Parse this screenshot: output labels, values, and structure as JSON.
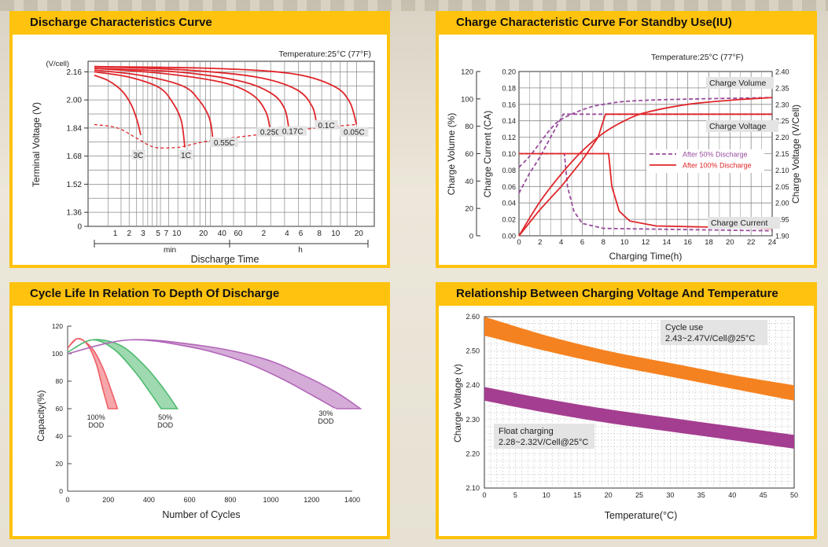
{
  "panels": {
    "p1": {
      "title": "Discharge Characteristics Curve"
    },
    "p2": {
      "title": "Charge Characteristic Curve For Standby Use(IU)"
    },
    "p3": {
      "title": "Cycle Life In Relation To Depth Of Discharge"
    },
    "p4": {
      "title": "Relationship Between Charging Voltage And Temperature"
    }
  },
  "chart_data": [
    {
      "type": "line",
      "title": "Discharge Characteristics Curve",
      "note": "Temperature:25°C (77°F)",
      "ylabel": "Terminal Voltage (V)",
      "yunit": "(V/cell)",
      "xlabel": "Discharge Time",
      "yticks": [
        "0",
        "1.36",
        "1.52",
        "1.68",
        "1.84",
        "2.00",
        "2.16"
      ],
      "xticks_min": [
        "1",
        "2",
        "3",
        "5",
        "7",
        "10",
        "20",
        "40",
        "60"
      ],
      "xticks_h": [
        "2",
        "4",
        "6",
        "8",
        "10",
        "20"
      ],
      "xgroup_labels": [
        "min",
        "h"
      ],
      "series": [
        {
          "name": "3C",
          "points": [
            [
              0.0,
              2.14
            ],
            [
              0.6,
              2.11
            ],
            [
              1.2,
              2.05
            ],
            [
              1.6,
              1.97
            ],
            [
              1.85,
              1.88
            ],
            [
              2.0,
              1.8
            ]
          ]
        },
        {
          "name": "1C",
          "points": [
            [
              0.0,
              2.16
            ],
            [
              1.5,
              2.13
            ],
            [
              2.8,
              2.07
            ],
            [
              3.4,
              1.98
            ],
            [
              3.75,
              1.88
            ],
            [
              3.9,
              1.73
            ]
          ]
        },
        {
          "name": "0.55C",
          "points": [
            [
              0.0,
              2.17
            ],
            [
              2.0,
              2.14
            ],
            [
              3.8,
              2.08
            ],
            [
              4.5,
              2.0
            ],
            [
              4.95,
              1.9
            ],
            [
              5.1,
              1.79
            ]
          ]
        },
        {
          "name": "0.25C",
          "points": [
            [
              0.0,
              2.18
            ],
            [
              3.0,
              2.15
            ],
            [
              5.5,
              2.1
            ],
            [
              6.8,
              2.03
            ],
            [
              7.4,
              1.93
            ],
            [
              7.6,
              1.81
            ]
          ]
        },
        {
          "name": "0.17C",
          "points": [
            [
              0.0,
              2.18
            ],
            [
              3.5,
              2.16
            ],
            [
              6.2,
              2.11
            ],
            [
              7.6,
              2.04
            ],
            [
              8.2,
              1.95
            ],
            [
              8.4,
              1.82
            ]
          ]
        },
        {
          "name": "0.1C",
          "points": [
            [
              0.0,
              2.19
            ],
            [
              4.0,
              2.17
            ],
            [
              7.0,
              2.13
            ],
            [
              8.7,
              2.06
            ],
            [
              9.4,
              1.96
            ],
            [
              9.6,
              1.84
            ]
          ]
        },
        {
          "name": "0.05C",
          "points": [
            [
              0.0,
              2.19
            ],
            [
              5.0,
              2.18
            ],
            [
              8.5,
              2.15
            ],
            [
              10.3,
              2.08
            ],
            [
              11.0,
              1.99
            ],
            [
              11.3,
              1.86
            ]
          ]
        }
      ],
      "dashed_cutoff": [
        [
          0.0,
          1.86
        ],
        [
          1.0,
          1.84
        ],
        [
          1.85,
          1.78
        ],
        [
          2.6,
          1.73
        ],
        [
          3.6,
          1.73
        ],
        [
          4.0,
          1.74
        ],
        [
          5.1,
          1.77
        ],
        [
          7.6,
          1.81
        ],
        [
          9.6,
          1.84
        ],
        [
          11.3,
          1.86
        ]
      ]
    },
    {
      "type": "line",
      "title": "Charge Characteristic Curve For Standby Use(IU)",
      "note": "Temperature:25°C (77°F)",
      "xlabel": "Charging Time(h)",
      "ylabel_left1": "Charge Volume (%)",
      "ylabel_left2": "Charge Current (CA)",
      "ylabel_right": "Charge Voltage (V/Cell)",
      "x": [
        0,
        24
      ],
      "xticks": [
        "0",
        "2",
        "4",
        "6",
        "8",
        "10",
        "12",
        "14",
        "16",
        "18",
        "20",
        "22",
        "24"
      ],
      "yticks_volume": [
        "0",
        "20",
        "40",
        "60",
        "80",
        "100",
        "120"
      ],
      "yticks_current": [
        "0.00",
        "0.02",
        "0.04",
        "0.06",
        "0.08",
        "0.10",
        "0.12",
        "0.14",
        "0.16",
        "0.18",
        "0.20"
      ],
      "yticks_voltage": [
        "1.90",
        "1.95",
        "2.00",
        "2.05",
        "2.10",
        "2.15",
        "2.20",
        "2.25",
        "2.30",
        "2.35",
        "2.40"
      ],
      "legend": [
        "After 50% Discharge",
        "After 100% Discharge"
      ],
      "annotations": [
        "Charge Volume",
        "Charge Voltage",
        "Charge Current"
      ],
      "series": [
        {
          "name": "After 50% Discharge",
          "kind": "volume",
          "points": [
            [
              0,
              50
            ],
            [
              1,
              58
            ],
            [
              2,
              68
            ],
            [
              3,
              78
            ],
            [
              4,
              85
            ],
            [
              6,
              92
            ],
            [
              8,
              96
            ],
            [
              12,
              99
            ],
            [
              24,
              101
            ]
          ]
        },
        {
          "name": "After 50% Discharge",
          "kind": "voltage",
          "points": [
            [
              0,
              2.03
            ],
            [
              1,
              2.09
            ],
            [
              2,
              2.14
            ],
            [
              3,
              2.2
            ],
            [
              4.2,
              2.27
            ],
            [
              24,
              2.27
            ]
          ]
        },
        {
          "name": "After 50% Discharge",
          "kind": "current",
          "points": [
            [
              0,
              0.1
            ],
            [
              4.3,
              0.1
            ],
            [
              4.6,
              0.06
            ],
            [
              5.2,
              0.03
            ],
            [
              6,
              0.015
            ],
            [
              8,
              0.009
            ],
            [
              24,
              0.006
            ]
          ]
        },
        {
          "name": "After 100% Discharge",
          "kind": "volume",
          "points": [
            [
              0,
              0
            ],
            [
              2,
              25
            ],
            [
              4,
              45
            ],
            [
              6,
              62
            ],
            [
              8,
              75
            ],
            [
              10,
              84
            ],
            [
              12,
              90
            ],
            [
              16,
              96
            ],
            [
              20,
              99
            ],
            [
              24,
              101
            ]
          ]
        },
        {
          "name": "After 100% Discharge",
          "kind": "voltage",
          "points": [
            [
              0,
              1.9
            ],
            [
              2,
              1.98
            ],
            [
              4,
              2.05
            ],
            [
              6,
              2.13
            ],
            [
              7.5,
              2.2
            ],
            [
              8.2,
              2.27
            ],
            [
              24,
              2.27
            ]
          ]
        },
        {
          "name": "After 100% Discharge",
          "kind": "current",
          "points": [
            [
              0,
              0.1
            ],
            [
              8.5,
              0.1
            ],
            [
              8.8,
              0.06
            ],
            [
              9.5,
              0.03
            ],
            [
              10.5,
              0.018
            ],
            [
              13,
              0.012
            ],
            [
              24,
              0.009
            ]
          ]
        }
      ]
    },
    {
      "type": "area",
      "title": "Cycle Life In Relation To Depth Of Discharge",
      "ylabel": "Capacity(%)",
      "xlabel": "Number of Cycles",
      "xticks": [
        "0",
        "200",
        "400",
        "600",
        "800",
        "1000",
        "1200",
        "1400"
      ],
      "yticks": [
        "0",
        "20",
        "40",
        "60",
        "80",
        "100",
        "120"
      ],
      "xlim": [
        0,
        1400
      ],
      "ylim": [
        0,
        120
      ],
      "bands": [
        {
          "label": [
            "100%",
            "DOD"
          ],
          "color": "#ef5f66",
          "lower": [
            [
              0,
              104
            ],
            [
              50,
              111
            ],
            [
              100,
              106
            ],
            [
              140,
              93
            ],
            [
              170,
              76
            ],
            [
              200,
              60
            ]
          ],
          "upper": [
            [
              0,
              104
            ],
            [
              50,
              111
            ],
            [
              120,
              104
            ],
            [
              175,
              89
            ],
            [
              215,
              73
            ],
            [
              245,
              60
            ]
          ]
        },
        {
          "label": [
            "50%",
            "DOD"
          ],
          "color": "#4fba6f",
          "lower": [
            [
              0,
              101
            ],
            [
              120,
              110
            ],
            [
              230,
              103
            ],
            [
              330,
              87
            ],
            [
              400,
              73
            ],
            [
              460,
              60
            ]
          ],
          "upper": [
            [
              0,
              101
            ],
            [
              120,
              110
            ],
            [
              260,
              106
            ],
            [
              380,
              91
            ],
            [
              470,
              75
            ],
            [
              540,
              60
            ]
          ]
        },
        {
          "label": [
            "30%",
            "DOD"
          ],
          "color": "#b266b8",
          "lower": [
            [
              0,
              100
            ],
            [
              300,
              110
            ],
            [
              600,
              105
            ],
            [
              850,
              95
            ],
            [
              1050,
              82
            ],
            [
              1200,
              70
            ],
            [
              1320,
              60
            ]
          ],
          "upper": [
            [
              0,
              100
            ],
            [
              300,
              110
            ],
            [
              650,
              106
            ],
            [
              950,
              97
            ],
            [
              1150,
              85
            ],
            [
              1320,
              72
            ],
            [
              1440,
              60
            ]
          ]
        }
      ]
    },
    {
      "type": "area",
      "title": "Relationship Between Charging Voltage And Temperature",
      "ylabel": "Charge Voltage (v)",
      "xlabel": "Temperature(°C)",
      "xticks": [
        "0",
        "5",
        "10",
        "15",
        "20",
        "25",
        "30",
        "35",
        "40",
        "45",
        "50"
      ],
      "yticks": [
        "2.10",
        "2.20",
        "2.30",
        "2.40",
        "2.50",
        "2.60"
      ],
      "xlim": [
        0,
        50
      ],
      "ylim": [
        2.1,
        2.6
      ],
      "bands": [
        {
          "label": [
            "Cycle use",
            "2.43~2.47V/Cell@25°C"
          ],
          "color": "#f58220",
          "lower": [
            [
              0,
              2.545
            ],
            [
              10,
              2.5
            ],
            [
              20,
              2.46
            ],
            [
              30,
              2.425
            ],
            [
              40,
              2.39
            ],
            [
              50,
              2.355
            ]
          ],
          "upper": [
            [
              0,
              2.6
            ],
            [
              10,
              2.545
            ],
            [
              20,
              2.5
            ],
            [
              30,
              2.465
            ],
            [
              40,
              2.43
            ],
            [
              50,
              2.4
            ]
          ]
        },
        {
          "label": [
            "Float charging",
            "2.28~2.32V/Cell@25°C"
          ],
          "color": "#a43e90",
          "lower": [
            [
              0,
              2.355
            ],
            [
              10,
              2.32
            ],
            [
              20,
              2.29
            ],
            [
              30,
              2.265
            ],
            [
              40,
              2.24
            ],
            [
              50,
              2.215
            ]
          ],
          "upper": [
            [
              0,
              2.395
            ],
            [
              10,
              2.36
            ],
            [
              20,
              2.33
            ],
            [
              30,
              2.305
            ],
            [
              40,
              2.28
            ],
            [
              50,
              2.255
            ]
          ]
        }
      ]
    }
  ]
}
